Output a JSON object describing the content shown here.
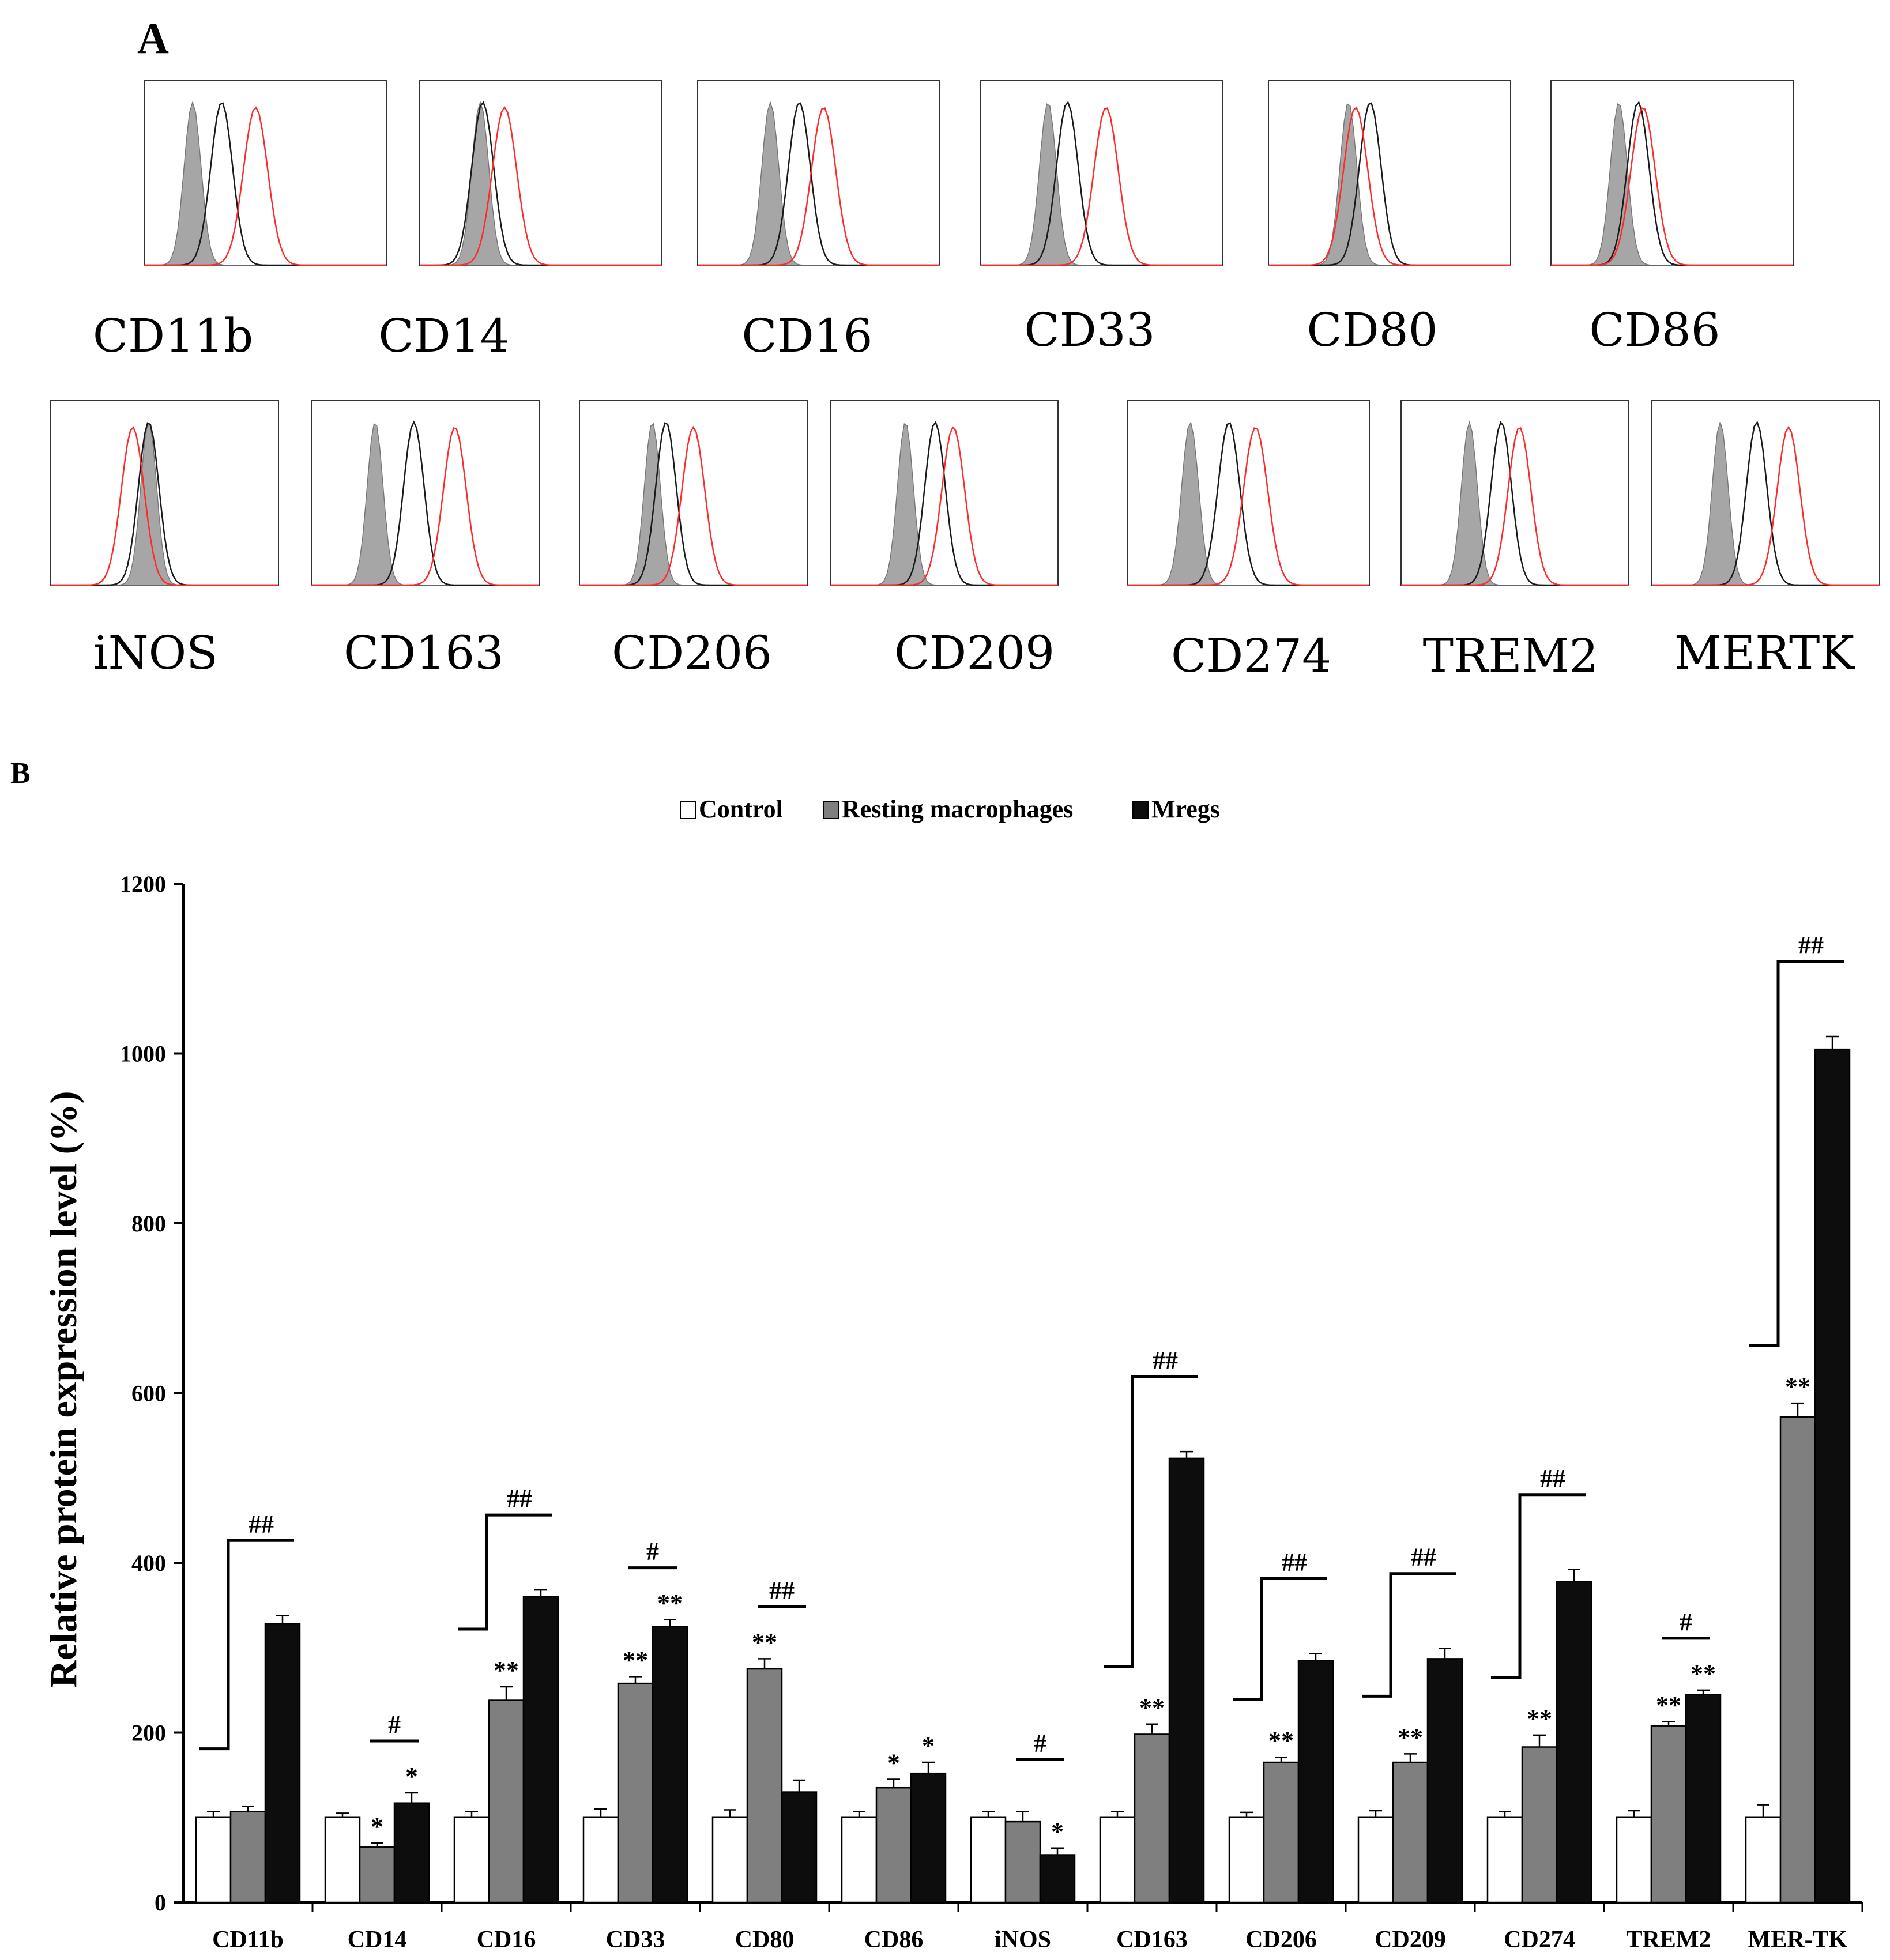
{
  "panel_a": {
    "letter": "A",
    "histograms": [
      {
        "label": "CD11b"
      },
      {
        "label": "CD14"
      },
      {
        "label": "CD16"
      },
      {
        "label": "CD33"
      },
      {
        "label": "CD80"
      },
      {
        "label": "CD86"
      },
      {
        "label": "iNOS"
      },
      {
        "label": "CD163"
      },
      {
        "label": "CD206"
      },
      {
        "label": "CD209"
      },
      {
        "label": "CD274"
      },
      {
        "label": "TREM2"
      },
      {
        "label": "MERTK"
      }
    ]
  },
  "panel_b": {
    "letter": "B"
  },
  "colors": {
    "control": "#ffffff",
    "resting": "#7f7f7f",
    "mregs": "#0d0d0d",
    "histogram_fill": "#a6a6a6",
    "histogram_red": "#ff2a2a",
    "histogram_black": "#1a1a1a"
  },
  "chart_data": {
    "type": "bar",
    "title": "",
    "xlabel": "",
    "ylabel": "Relative protein expression level (%)",
    "ylim": [
      0,
      1200
    ],
    "yticks": [
      0,
      200,
      400,
      600,
      800,
      1000,
      1200
    ],
    "legend_position": "top-center",
    "categories": [
      "CD11b",
      "CD14",
      "CD16",
      "CD33",
      "CD80",
      "CD86",
      "iNOS",
      "CD163",
      "CD206",
      "CD209",
      "CD274",
      "TREM2",
      "MER-TK"
    ],
    "series": [
      {
        "name": "Control",
        "values": [
          100,
          100,
          100,
          100,
          100,
          100,
          100,
          100,
          100,
          100,
          100,
          100,
          100
        ],
        "errors": [
          7,
          5,
          7,
          10,
          9,
          7,
          7,
          7,
          6,
          8,
          7,
          8,
          15
        ],
        "marks": [
          "",
          "",
          "",
          "",
          "",
          "",
          "",
          "",
          "",
          "",
          "",
          "",
          ""
        ]
      },
      {
        "name": "Resting macrophages",
        "values": [
          107,
          65,
          238,
          258,
          275,
          135,
          95,
          198,
          165,
          165,
          183,
          208,
          572
        ],
        "errors": [
          6,
          5,
          16,
          8,
          12,
          10,
          12,
          12,
          6,
          10,
          14,
          5,
          16
        ],
        "marks": [
          "",
          "*",
          "**",
          "**",
          "**",
          "*",
          "",
          "**",
          "**",
          "**",
          "**",
          "**",
          "**"
        ]
      },
      {
        "name": "Mregs",
        "values": [
          328,
          117,
          360,
          325,
          130,
          152,
          56,
          523,
          285,
          287,
          378,
          245,
          1005
        ],
        "errors": [
          10,
          12,
          8,
          8,
          14,
          13,
          8,
          8,
          8,
          12,
          14,
          5,
          15
        ],
        "marks": [
          "",
          "*",
          "",
          "**",
          "",
          "*",
          "*",
          "",
          "",
          "",
          "",
          "**",
          ""
        ]
      }
    ],
    "comparisons": [
      {
        "category": "CD11b",
        "label": "##",
        "style": "bracket"
      },
      {
        "category": "CD14",
        "label": "#",
        "style": "bar"
      },
      {
        "category": "CD16",
        "label": "##",
        "style": "bracket"
      },
      {
        "category": "CD33",
        "label": "#",
        "style": "bar"
      },
      {
        "category": "CD80",
        "label": "##",
        "style": "bar"
      },
      {
        "category": "iNOS",
        "label": "#",
        "style": "bar"
      },
      {
        "category": "CD163",
        "label": "##",
        "style": "bracket"
      },
      {
        "category": "CD206",
        "label": "##",
        "style": "bracket"
      },
      {
        "category": "CD209",
        "label": "##",
        "style": "bracket"
      },
      {
        "category": "CD274",
        "label": "##",
        "style": "bracket"
      },
      {
        "category": "TREM2",
        "label": "#",
        "style": "bar"
      },
      {
        "category": "MER-TK",
        "label": "##",
        "style": "bracket"
      }
    ]
  }
}
